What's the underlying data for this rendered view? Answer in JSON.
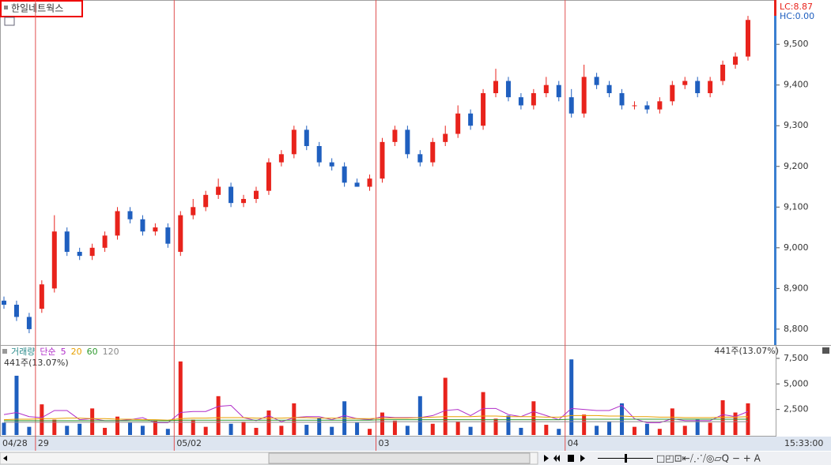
{
  "chart_data": [
    {
      "type": "candlestick",
      "title": "한일네트웍스",
      "up_color": "#e8231c",
      "down_color": "#1f5fbf",
      "annotations": [
        "LC:8.87",
        "HC:0.00"
      ],
      "categories": [
        "04/28",
        null,
        null,
        "29",
        null,
        null,
        null,
        null,
        null,
        null,
        null,
        null,
        null,
        null,
        "05/02",
        null,
        null,
        null,
        null,
        null,
        null,
        null,
        null,
        null,
        null,
        null,
        null,
        null,
        null,
        null,
        "03",
        null,
        null,
        null,
        null,
        null,
        null,
        null,
        null,
        null,
        null,
        null,
        null,
        null,
        null,
        "04",
        null,
        null,
        null,
        null,
        null,
        null,
        null,
        null,
        null,
        null,
        null,
        null,
        null,
        null
      ],
      "open": [
        8870,
        8860,
        8830,
        8850,
        8900,
        9040,
        8990,
        8980,
        9000,
        9030,
        9090,
        9070,
        9040,
        9050,
        8990,
        9080,
        9100,
        9130,
        9150,
        9110,
        9120,
        9140,
        9210,
        9230,
        9290,
        9250,
        9210,
        9200,
        9160,
        9150,
        9170,
        9260,
        9290,
        9230,
        9210,
        9260,
        9280,
        9330,
        9300,
        9380,
        9410,
        9370,
        9350,
        9380,
        9400,
        9370,
        9330,
        9420,
        9400,
        9380,
        9350,
        9350,
        9340,
        9360,
        9400,
        9410,
        9380,
        9410,
        9450,
        9470
      ],
      "high": [
        8880,
        8870,
        8840,
        8920,
        9080,
        9050,
        9000,
        9010,
        9040,
        9100,
        9100,
        9080,
        9060,
        9060,
        9090,
        9120,
        9140,
        9170,
        9160,
        9130,
        9150,
        9220,
        9240,
        9300,
        9300,
        9260,
        9220,
        9210,
        9170,
        9180,
        9270,
        9300,
        9300,
        9240,
        9270,
        9300,
        9350,
        9340,
        9390,
        9440,
        9420,
        9380,
        9390,
        9420,
        9410,
        9390,
        9450,
        9430,
        9410,
        9390,
        9360,
        9360,
        9370,
        9410,
        9420,
        9420,
        9420,
        9460,
        9480,
        9570
      ],
      "low": [
        8850,
        8820,
        8790,
        8840,
        8890,
        8980,
        8970,
        8970,
        8990,
        9020,
        9060,
        9030,
        9030,
        9000,
        8980,
        9070,
        9090,
        9120,
        9100,
        9100,
        9110,
        9130,
        9200,
        9220,
        9240,
        9200,
        9190,
        9150,
        9150,
        9140,
        9160,
        9250,
        9220,
        9200,
        9200,
        9250,
        9270,
        9290,
        9290,
        9370,
        9360,
        9340,
        9340,
        9370,
        9360,
        9320,
        9320,
        9390,
        9370,
        9340,
        9340,
        9330,
        9330,
        9350,
        9390,
        9370,
        9370,
        9400,
        9440,
        9460
      ],
      "close": [
        8860,
        8830,
        8800,
        8910,
        9040,
        8990,
        8980,
        9000,
        9030,
        9090,
        9070,
        9040,
        9050,
        9010,
        9080,
        9100,
        9130,
        9150,
        9110,
        9120,
        9140,
        9210,
        9230,
        9290,
        9250,
        9210,
        9200,
        9160,
        9150,
        9170,
        9260,
        9290,
        9230,
        9210,
        9260,
        9280,
        9330,
        9300,
        9380,
        9410,
        9370,
        9350,
        9380,
        9400,
        9370,
        9330,
        9420,
        9400,
        9380,
        9350,
        9350,
        9340,
        9360,
        9400,
        9410,
        9380,
        9410,
        9450,
        9470,
        9560
      ],
      "ylim": [
        8761,
        9609
      ],
      "yticks": [
        {
          "value": 8800,
          "label": "8,800"
        },
        {
          "value": 8900,
          "label": "8,900"
        },
        {
          "value": 9000,
          "label": "9,000"
        },
        {
          "value": 9100,
          "label": "9,100"
        },
        {
          "value": 9200,
          "label": "9,200"
        },
        {
          "value": 9300,
          "label": "9,300"
        },
        {
          "value": 9400,
          "label": "9,400"
        },
        {
          "value": 9500,
          "label": "9,500"
        }
      ]
    },
    {
      "type": "bar",
      "legend_prefix": "단순",
      "annotations": [
        "441주(13.07%)",
        "441주(13.07%)"
      ],
      "time_label": "15:33:00",
      "series": [
        {
          "name": "거래량",
          "color": "#e8231c",
          "values": [
            1200,
            5800,
            800,
            3000,
            1500,
            900,
            1100,
            2600,
            700,
            1800,
            1200,
            900,
            1400,
            600,
            7200,
            1500,
            800,
            3800,
            1100,
            1300,
            700,
            2400,
            900,
            3100,
            1000,
            1700,
            800,
            3300,
            1200,
            600,
            2200,
            1400,
            900,
            3800,
            1100,
            5600,
            1300,
            800,
            4200,
            1600,
            1900,
            700,
            3300,
            1000,
            600,
            7400,
            2000,
            900,
            1300,
            3100,
            800,
            1100,
            600,
            2600,
            900,
            1500,
            1200,
            3400,
            2200,
            3100
          ]
        },
        {
          "name": "5",
          "color": "#b02cc8",
          "values": [
            2000,
            2200,
            1800,
            1700,
            2400,
            2400,
            1500,
            1600,
            1400,
            1400,
            1500,
            1700,
            1200,
            1200,
            2200,
            2300,
            2300,
            2800,
            2900,
            1700,
            1400,
            1900,
            1300,
            1700,
            1800,
            1800,
            1500,
            1900,
            1600,
            1500,
            1800,
            1700,
            1700,
            1700,
            1900,
            2400,
            2500,
            1900,
            2600,
            2600,
            2000,
            1800,
            2300,
            1900,
            1500,
            2600,
            2500,
            2400,
            2400,
            2900,
            1600,
            1200,
            1200,
            1600,
            1400,
            1400,
            1400,
            2000,
            1800,
            2300
          ]
        },
        {
          "name": "20",
          "color": "#e8a000",
          "values": [
            1500,
            1550,
            1550,
            1600,
            1600,
            1650,
            1650,
            1600,
            1600,
            1550,
            1550,
            1500,
            1500,
            1450,
            1600,
            1650,
            1650,
            1700,
            1700,
            1700,
            1650,
            1650,
            1650,
            1700,
            1700,
            1650,
            1650,
            1650,
            1600,
            1600,
            1650,
            1650,
            1650,
            1700,
            1750,
            1800,
            1800,
            1800,
            1850,
            1850,
            1800,
            1800,
            1800,
            1750,
            1750,
            1900,
            1900,
            1900,
            1850,
            1850,
            1800,
            1800,
            1750,
            1750,
            1700,
            1700,
            1700,
            1750,
            1750,
            1800
          ]
        },
        {
          "name": "60",
          "color": "#2e9a2e",
          "values": [
            1400,
            1400,
            1400,
            1400,
            1400,
            1400,
            1400,
            1400,
            1400,
            1400,
            1400,
            1400,
            1400,
            1400,
            1450,
            1450,
            1450,
            1450,
            1450,
            1450,
            1450,
            1450,
            1450,
            1450,
            1450,
            1450,
            1450,
            1450,
            1450,
            1450,
            1500,
            1500,
            1500,
            1500,
            1500,
            1500,
            1500,
            1500,
            1500,
            1500,
            1500,
            1500,
            1500,
            1500,
            1500,
            1550,
            1550,
            1550,
            1550,
            1550,
            1550,
            1550,
            1550,
            1550,
            1550,
            1550,
            1550,
            1550,
            1550,
            1550
          ]
        },
        {
          "name": "120",
          "color": "#8a8a8a",
          "values": [
            1250,
            1250,
            1250,
            1250,
            1250,
            1250,
            1250,
            1250,
            1250,
            1250,
            1250,
            1250,
            1250,
            1250,
            1250,
            1250,
            1250,
            1250,
            1250,
            1250,
            1250,
            1250,
            1250,
            1250,
            1250,
            1250,
            1250,
            1250,
            1250,
            1250,
            1300,
            1300,
            1300,
            1300,
            1300,
            1300,
            1300,
            1300,
            1300,
            1300,
            1300,
            1300,
            1300,
            1300,
            1300,
            1300,
            1300,
            1300,
            1300,
            1300,
            1300,
            1300,
            1300,
            1300,
            1300,
            1300,
            1300,
            1300,
            1300,
            1300
          ]
        }
      ],
      "ylim": [
        0,
        8731
      ],
      "yticks": [
        {
          "value": 2500,
          "label": "2,500"
        },
        {
          "value": 5000,
          "label": "5,000"
        },
        {
          "value": 7500,
          "label": "7,500"
        }
      ]
    }
  ]
}
